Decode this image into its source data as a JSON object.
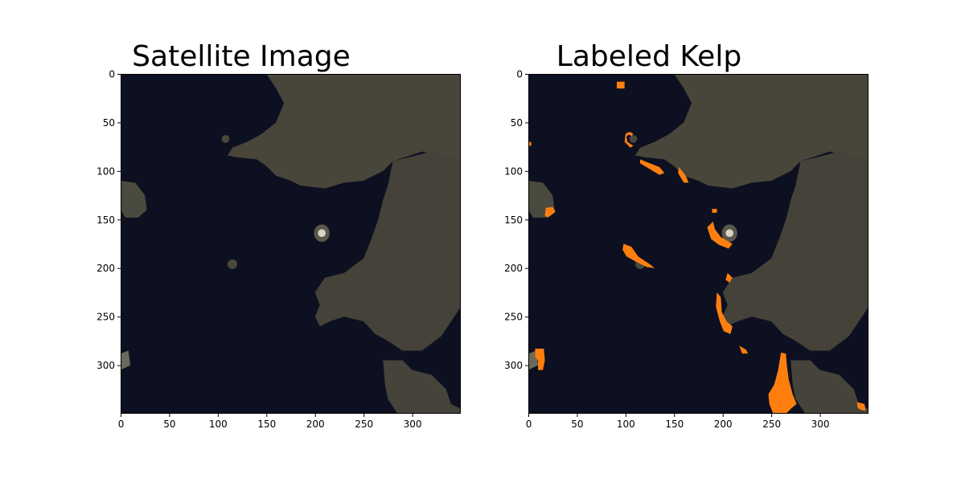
{
  "panels": [
    {
      "title": "Satellite Image"
    },
    {
      "title": "Labeled Kelp"
    }
  ],
  "axes": {
    "x_ticks": [
      "0",
      "50",
      "100",
      "150",
      "200",
      "250",
      "300"
    ],
    "y_ticks": [
      "0",
      "50",
      "100",
      "150",
      "200",
      "250",
      "300"
    ],
    "x_tick_values": [
      0,
      50,
      100,
      150,
      200,
      250,
      300
    ],
    "y_tick_values": [
      0,
      50,
      100,
      150,
      200,
      250,
      300
    ],
    "extent": [
      0,
      350
    ]
  },
  "colors": {
    "water": "#0d1020",
    "land": "#48453a",
    "land_dark": "#3a382f",
    "kelp": "#ff7f0e",
    "frame": "#000000"
  }
}
